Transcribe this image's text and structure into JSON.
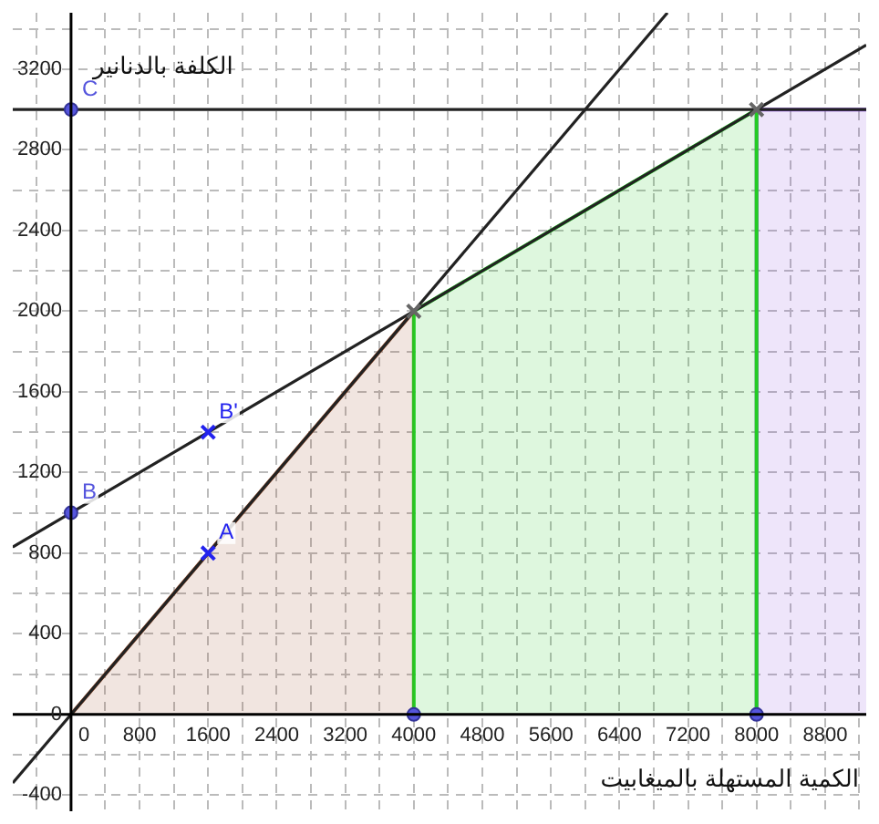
{
  "chart_data": {
    "type": "line",
    "xlabel": "الكمية المستهلة بالميغابيت",
    "ylabel": "الكلفة بالدنانير",
    "xlim": [
      -680,
      9280
    ],
    "ylim": [
      -480,
      3480
    ],
    "xticks": [
      {
        "value": -400,
        "label": null
      },
      0,
      {
        "value": 400,
        "label": null
      },
      800,
      {
        "value": 1200,
        "label": null
      },
      1600,
      {
        "value": 2000,
        "label": null
      },
      2400,
      {
        "value": 2800,
        "label": null
      },
      3200,
      {
        "value": 3600,
        "label": null
      },
      4000,
      {
        "value": 4400,
        "label": null
      },
      4800,
      {
        "value": 5200,
        "label": null
      },
      5600,
      {
        "value": 6000,
        "label": null
      },
      6400,
      {
        "value": 6800,
        "label": null
      },
      7200,
      {
        "value": 7600,
        "label": null
      },
      8000,
      {
        "value": 8400,
        "label": null
      },
      8800,
      {
        "value": 9200,
        "label": null
      }
    ],
    "yticks": [
      -400,
      {
        "value": -200,
        "label": null
      },
      0,
      {
        "value": 200,
        "label": null
      },
      400,
      {
        "value": 600,
        "label": null
      },
      800,
      {
        "value": 1000,
        "label": null
      },
      1200,
      {
        "value": 1400,
        "label": null
      },
      1600,
      {
        "value": 1800,
        "label": null
      },
      2000,
      {
        "value": 2200,
        "label": null
      },
      2400,
      {
        "value": 2600,
        "label": null
      },
      2800,
      {
        "value": 3000,
        "label": null
      },
      3200,
      {
        "value": 3400,
        "label": null
      }
    ],
    "grid": true,
    "legend": false,
    "series": [
      {
        "type": "area",
        "color": "#a0522d",
        "x": [
          0,
          4000
        ],
        "values": [
          0,
          2000
        ]
      },
      {
        "type": "area",
        "color": "#22cc22",
        "x": [
          4000,
          4000,
          8000,
          8000
        ],
        "values": [
          0,
          2000,
          3000,
          0
        ]
      },
      {
        "type": "area",
        "color": "#8a4fe0",
        "x": [
          8000,
          8000,
          9280
        ],
        "values": [
          0,
          3000,
          3000
        ]
      },
      {
        "color": "#222222",
        "x": [
          -680,
          6960
        ],
        "values": [
          -340,
          3480
        ]
      },
      {
        "color": "#222222",
        "x": [
          -680,
          9280
        ],
        "values": [
          830,
          3320
        ]
      },
      {
        "color": "#222222",
        "x": [
          -680,
          9280
        ],
        "values": [
          3000,
          3000
        ]
      },
      {
        "type": "scatter",
        "marker": "cross",
        "color": "#2222ee",
        "x": [
          1600,
          1600
        ],
        "values": [
          800,
          1400
        ],
        "value_labels": [
          "A",
          "B'"
        ]
      },
      {
        "type": "scatter",
        "marker": "cross",
        "color": "#666666",
        "x": [
          4000,
          8000
        ],
        "values": [
          2000,
          3000
        ]
      },
      {
        "type": "scatter",
        "marker": "circle",
        "color": "#5555dd",
        "x": [
          0,
          0,
          4000,
          8000
        ],
        "values": [
          1000,
          3000,
          0,
          0
        ],
        "value_labels": [
          "B",
          "C",
          null,
          null
        ]
      }
    ]
  }
}
